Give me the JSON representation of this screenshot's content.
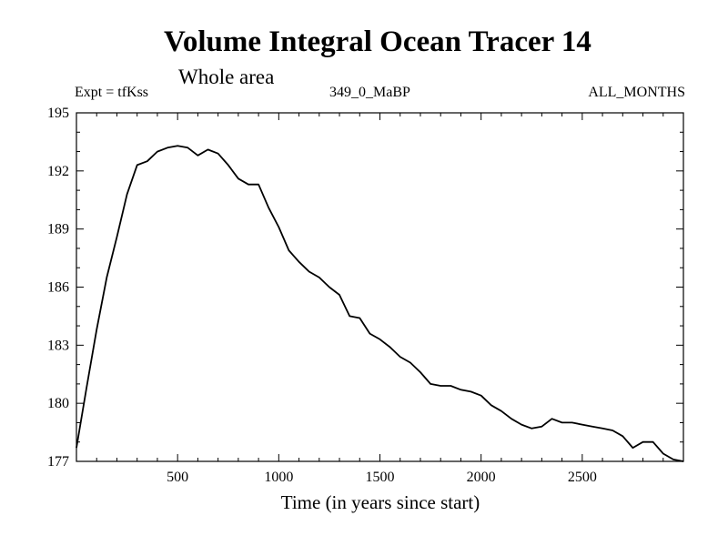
{
  "chart_data": {
    "type": "line",
    "title": "Volume Integral Ocean Tracer 14",
    "subtitle": "Whole area",
    "annotations": {
      "left": "Expt = tfKss",
      "center": "349_0_MaBP",
      "right": "ALL_MONTHS"
    },
    "xlabel": "Time (in years since start)",
    "ylabel": "",
    "xlim": [
      0,
      3000
    ],
    "ylim": [
      177,
      195
    ],
    "xticks": [
      500,
      1000,
      1500,
      2000,
      2500
    ],
    "xtick_labels": [
      "500",
      "1000",
      "1500",
      "2000",
      "2500"
    ],
    "yticks": [
      177,
      180,
      183,
      186,
      189,
      192,
      195
    ],
    "ytick_labels": [
      "177",
      "180",
      "183",
      "186",
      "189",
      "192",
      "195"
    ],
    "grid": false,
    "series": [
      {
        "name": "Volume Integral Ocean Tracer 14",
        "x": [
          0,
          50,
          100,
          150,
          200,
          250,
          300,
          350,
          400,
          450,
          500,
          550,
          600,
          650,
          700,
          750,
          800,
          850,
          900,
          950,
          1000,
          1050,
          1100,
          1150,
          1200,
          1250,
          1300,
          1350,
          1400,
          1450,
          1500,
          1550,
          1600,
          1650,
          1700,
          1750,
          1800,
          1850,
          1900,
          1950,
          2000,
          2050,
          2100,
          2150,
          2200,
          2250,
          2300,
          2350,
          2400,
          2450,
          2500,
          2550,
          2600,
          2650,
          2700,
          2750,
          2800,
          2850,
          2900,
          2950,
          3000
        ],
        "values": [
          177.7,
          180.8,
          183.8,
          186.5,
          188.6,
          190.8,
          192.3,
          192.5,
          193.0,
          193.2,
          193.3,
          193.2,
          192.8,
          193.1,
          192.9,
          192.3,
          191.6,
          191.3,
          191.3,
          190.1,
          189.1,
          187.9,
          187.3,
          186.8,
          186.5,
          186.0,
          185.6,
          184.5,
          184.4,
          183.6,
          183.3,
          182.9,
          182.4,
          182.1,
          181.6,
          181.0,
          180.9,
          180.9,
          180.7,
          180.6,
          180.4,
          179.9,
          179.6,
          179.2,
          178.9,
          178.7,
          178.8,
          179.2,
          179.0,
          179.0,
          178.9,
          178.8,
          178.7,
          178.6,
          178.3,
          177.7,
          178.0,
          178.0,
          177.4,
          177.1,
          177.0
        ]
      }
    ]
  }
}
